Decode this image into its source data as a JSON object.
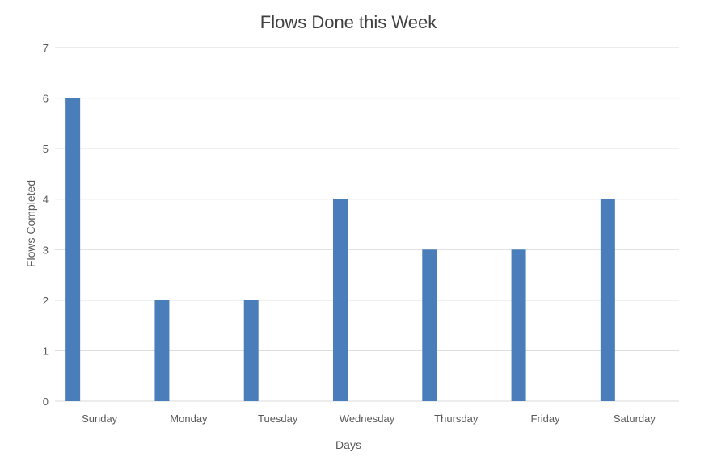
{
  "chart_data": {
    "type": "bar",
    "title": "Flows Done this Week",
    "xlabel": "Days",
    "ylabel": "Flows Completed",
    "categories": [
      "Sunday",
      "Monday",
      "Tuesday",
      "Wednesday",
      "Thursday",
      "Friday",
      "Saturday"
    ],
    "values": [
      6,
      2,
      2,
      4,
      3,
      3,
      4
    ],
    "ylim": [
      0,
      7
    ],
    "yticks": [
      0,
      1,
      2,
      3,
      4,
      5,
      6,
      7
    ],
    "grid": true,
    "legend": "none",
    "colors": {
      "bar": "#4a7ebb",
      "grid": "#d9d9d9",
      "axis": "#d9d9d9"
    }
  }
}
